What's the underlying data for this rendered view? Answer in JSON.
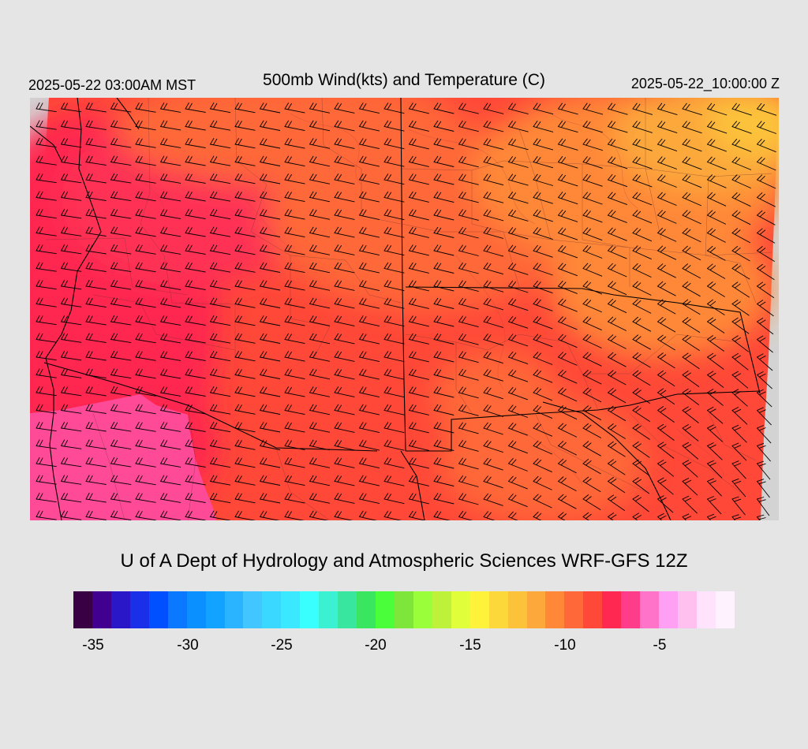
{
  "header": {
    "local_time": "2025-05-22 03:00AM MST",
    "title": "500mb Wind(kts) and Temperature (C)",
    "valid_time": "2025-05-22_10:00:00 Z"
  },
  "credit": "U of A Dept of Hydrology and Atmospheric Sciences WRF-GFS 12Z",
  "colorbar": {
    "colors": [
      "#3a0044",
      "#420090",
      "#2a18c8",
      "#1a30e8",
      "#0050ff",
      "#0a78ff",
      "#0a90ff",
      "#12a2ff",
      "#2ab4ff",
      "#42c6ff",
      "#3ad8ff",
      "#3ae8ff",
      "#3affff",
      "#3af2d2",
      "#38e6a0",
      "#3ae660",
      "#4aff3a",
      "#7ee63a",
      "#9aff3a",
      "#bef23a",
      "#e0ff3a",
      "#fff23a",
      "#fcd83a",
      "#fcc23a",
      "#fca83a",
      "#ff8838",
      "#ff6838",
      "#ff4838",
      "#ff2850",
      "#ff3c8a",
      "#ff74c8",
      "#ffa0f4",
      "#ffc0f0",
      "#ffe2fc",
      "#fff2ff"
    ],
    "tick_labels": [
      "-35",
      "-30",
      "-25",
      "-20",
      "-15",
      "-10",
      "-5"
    ]
  },
  "map": {
    "variable": "500mb temperature (C) with wind barbs (kts)",
    "region": "Arizona, New Mexico and northwestern Mexico",
    "field_colors": {
      "cold_core": "#ff3c8a",
      "cold_edge": "#ff2850",
      "mid": "#ff4838",
      "mid_warm": "#ff6838",
      "warm": "#ff8838",
      "warmest": "#fca83a",
      "hot": "#fcc23a",
      "peak": "#fcd83a",
      "outside_domain": "#d3d3d3"
    }
  }
}
